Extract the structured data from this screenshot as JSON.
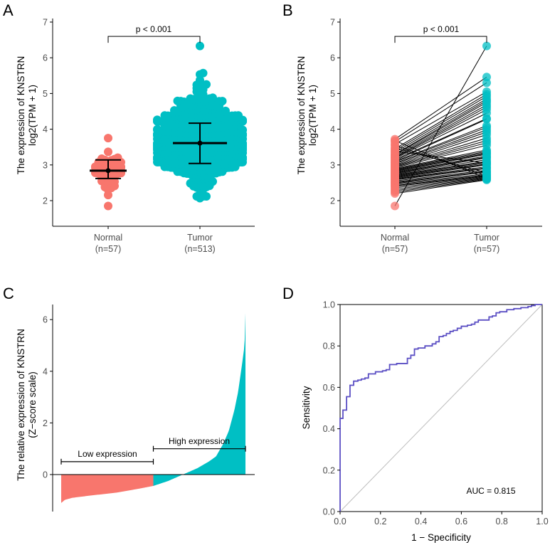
{
  "colors": {
    "normal": "#F8766D",
    "tumor": "#00BFC4",
    "roc_curve": "#5B4FC4",
    "reference_line": "#BEBEBE",
    "axis": "#000000",
    "tick_text": "#4D4D4D"
  },
  "chart_data": [
    {
      "id": "A",
      "panel_label": "A",
      "type": "scatter",
      "subtype": "beeswarm with mean ± SD",
      "ylabel_line1": "The expression of KNSTRN",
      "ylabel_line2": "log2(TPM + 1)",
      "ylim": [
        1.3,
        7
      ],
      "yticks": [
        2,
        3,
        4,
        5,
        6,
        7
      ],
      "categories": [
        {
          "name": "Normal",
          "n_label": "(n=57)",
          "n": 57,
          "mean": 2.84,
          "sd_low": 2.62,
          "sd_high": 3.14,
          "min": 1.85,
          "max": 3.75
        },
        {
          "name": "Tumor",
          "n_label": "(n=513)",
          "n": 513,
          "mean": 3.61,
          "sd_low": 3.04,
          "sd_high": 4.17,
          "min": 2.07,
          "max": 6.33
        }
      ],
      "significance": {
        "label": "p < 0.001",
        "y": 6.6
      }
    },
    {
      "id": "B",
      "panel_label": "B",
      "type": "line",
      "subtype": "paired points",
      "ylabel_line1": "The expression of KNSTRN",
      "ylabel_line2": "log2(TPM + 1)",
      "ylim": [
        1.3,
        7
      ],
      "yticks": [
        2,
        3,
        4,
        5,
        6,
        7
      ],
      "categories": [
        {
          "name": "Normal",
          "n_label": "(n=57)"
        },
        {
          "name": "Tumor",
          "n_label": "(n=57)"
        }
      ],
      "significance": {
        "label": "p < 0.001",
        "y": 6.6
      },
      "pairs": [
        [
          1.85,
          6.33
        ],
        [
          3.72,
          5.46
        ],
        [
          3.65,
          5.3
        ],
        [
          3.58,
          5.05
        ],
        [
          3.45,
          4.98
        ],
        [
          3.4,
          4.92
        ],
        [
          3.35,
          4.85
        ],
        [
          3.3,
          4.8
        ],
        [
          3.28,
          4.75
        ],
        [
          3.25,
          4.68
        ],
        [
          3.22,
          4.62
        ],
        [
          3.2,
          4.55
        ],
        [
          3.18,
          4.45
        ],
        [
          3.15,
          4.3
        ],
        [
          3.12,
          4.28
        ],
        [
          3.1,
          4.1
        ],
        [
          3.08,
          4.05
        ],
        [
          3.05,
          3.98
        ],
        [
          3.03,
          3.92
        ],
        [
          3.0,
          3.85
        ],
        [
          2.98,
          3.75
        ],
        [
          2.96,
          3.68
        ],
        [
          2.94,
          3.62
        ],
        [
          2.92,
          3.55
        ],
        [
          2.9,
          3.42
        ],
        [
          2.88,
          3.38
        ],
        [
          2.86,
          3.35
        ],
        [
          2.84,
          3.32
        ],
        [
          2.82,
          3.3
        ],
        [
          2.8,
          3.25
        ],
        [
          2.78,
          3.22
        ],
        [
          2.76,
          3.2
        ],
        [
          2.74,
          3.15
        ],
        [
          2.72,
          3.1
        ],
        [
          2.7,
          3.08
        ],
        [
          2.68,
          3.05
        ],
        [
          2.66,
          3.02
        ],
        [
          2.64,
          3.0
        ],
        [
          2.62,
          2.95
        ],
        [
          2.6,
          2.92
        ],
        [
          2.58,
          2.9
        ],
        [
          2.55,
          2.85
        ],
        [
          2.52,
          2.82
        ],
        [
          2.5,
          2.8
        ],
        [
          2.48,
          2.75
        ],
        [
          2.45,
          2.72
        ],
        [
          2.42,
          2.7
        ],
        [
          2.4,
          2.68
        ],
        [
          2.36,
          2.66
        ],
        [
          2.32,
          2.64
        ],
        [
          2.28,
          2.62
        ],
        [
          2.24,
          2.6
        ],
        [
          2.2,
          2.58
        ],
        [
          3.68,
          2.62
        ],
        [
          3.55,
          2.7
        ],
        [
          3.48,
          2.78
        ],
        [
          3.38,
          3.05
        ]
      ]
    },
    {
      "id": "C",
      "panel_label": "C",
      "type": "area",
      "subtype": "sorted z-score waterfall",
      "ylabel_line1": "The relative expression of KNSTRN",
      "ylabel_line2": "(Z−score scale)",
      "ylim": [
        -1.45,
        6.6
      ],
      "yticks": [
        0,
        2,
        4,
        6
      ],
      "n_samples": 513,
      "low_group_fraction": 0.5,
      "min": -1.1,
      "max": 6.25,
      "profile": [
        [
          0.0,
          -1.1
        ],
        [
          0.02,
          -0.98
        ],
        [
          0.06,
          -0.9
        ],
        [
          0.15,
          -0.82
        ],
        [
          0.3,
          -0.7
        ],
        [
          0.42,
          -0.55
        ],
        [
          0.5,
          -0.44
        ],
        [
          0.58,
          -0.25
        ],
        [
          0.66,
          0.0
        ],
        [
          0.74,
          0.25
        ],
        [
          0.8,
          0.5
        ],
        [
          0.84,
          0.7
        ],
        [
          0.88,
          1.2
        ],
        [
          0.91,
          1.7
        ],
        [
          0.94,
          2.5
        ],
        [
          0.96,
          3.2
        ],
        [
          0.98,
          4.2
        ],
        [
          0.995,
          5.0
        ],
        [
          1.0,
          6.25
        ]
      ],
      "annotations": [
        {
          "label": "Low expression",
          "x_from": 0.0,
          "x_to": 0.5,
          "y": 0.5
        },
        {
          "label": "High expression",
          "x_from": 0.5,
          "x_to": 1.0,
          "y": 1.0
        }
      ]
    },
    {
      "id": "D",
      "panel_label": "D",
      "type": "line",
      "subtype": "ROC curve",
      "xlabel": "1 − Specificity",
      "ylabel": "Sensitivity",
      "xlim": [
        0,
        1
      ],
      "ylim": [
        0,
        1
      ],
      "xticks": [
        "0.0",
        "0.2",
        "0.4",
        "0.6",
        "0.8",
        "1.0"
      ],
      "yticks": [
        "0.0",
        "0.2",
        "0.4",
        "0.6",
        "0.8",
        "1.0"
      ],
      "auc_label": "AUC = 0.815",
      "curve": [
        [
          0.0,
          0.0
        ],
        [
          0.0,
          0.45
        ],
        [
          0.014,
          0.45
        ],
        [
          0.014,
          0.49
        ],
        [
          0.032,
          0.49
        ],
        [
          0.032,
          0.555
        ],
        [
          0.049,
          0.555
        ],
        [
          0.049,
          0.61
        ],
        [
          0.067,
          0.61
        ],
        [
          0.067,
          0.63
        ],
        [
          0.088,
          0.63
        ],
        [
          0.088,
          0.635
        ],
        [
          0.105,
          0.635
        ],
        [
          0.105,
          0.64
        ],
        [
          0.123,
          0.64
        ],
        [
          0.123,
          0.645
        ],
        [
          0.14,
          0.645
        ],
        [
          0.14,
          0.665
        ],
        [
          0.175,
          0.665
        ],
        [
          0.175,
          0.675
        ],
        [
          0.21,
          0.675
        ],
        [
          0.21,
          0.68
        ],
        [
          0.228,
          0.68
        ],
        [
          0.228,
          0.685
        ],
        [
          0.245,
          0.685
        ],
        [
          0.245,
          0.71
        ],
        [
          0.28,
          0.71
        ],
        [
          0.28,
          0.715
        ],
        [
          0.333,
          0.715
        ],
        [
          0.333,
          0.74
        ],
        [
          0.35,
          0.74
        ],
        [
          0.35,
          0.755
        ],
        [
          0.368,
          0.755
        ],
        [
          0.368,
          0.785
        ],
        [
          0.386,
          0.785
        ],
        [
          0.386,
          0.79
        ],
        [
          0.42,
          0.79
        ],
        [
          0.42,
          0.8
        ],
        [
          0.456,
          0.8
        ],
        [
          0.456,
          0.81
        ],
        [
          0.474,
          0.81
        ],
        [
          0.474,
          0.82
        ],
        [
          0.49,
          0.82
        ],
        [
          0.49,
          0.845
        ],
        [
          0.51,
          0.845
        ],
        [
          0.51,
          0.85
        ],
        [
          0.526,
          0.85
        ],
        [
          0.526,
          0.86
        ],
        [
          0.544,
          0.86
        ],
        [
          0.544,
          0.87
        ],
        [
          0.56,
          0.87
        ],
        [
          0.56,
          0.875
        ],
        [
          0.58,
          0.875
        ],
        [
          0.58,
          0.885
        ],
        [
          0.6,
          0.885
        ],
        [
          0.6,
          0.895
        ],
        [
          0.63,
          0.895
        ],
        [
          0.63,
          0.9
        ],
        [
          0.65,
          0.9
        ],
        [
          0.65,
          0.905
        ],
        [
          0.667,
          0.905
        ],
        [
          0.667,
          0.915
        ],
        [
          0.684,
          0.915
        ],
        [
          0.684,
          0.925
        ],
        [
          0.737,
          0.925
        ],
        [
          0.737,
          0.94
        ],
        [
          0.754,
          0.94
        ],
        [
          0.754,
          0.945
        ],
        [
          0.772,
          0.945
        ],
        [
          0.772,
          0.96
        ],
        [
          0.79,
          0.96
        ],
        [
          0.79,
          0.965
        ],
        [
          0.825,
          0.965
        ],
        [
          0.825,
          0.975
        ],
        [
          0.86,
          0.975
        ],
        [
          0.86,
          0.98
        ],
        [
          0.895,
          0.98
        ],
        [
          0.895,
          0.985
        ],
        [
          0.93,
          0.985
        ],
        [
          0.93,
          0.99
        ],
        [
          0.947,
          0.99
        ],
        [
          0.947,
          0.995
        ],
        [
          0.965,
          0.995
        ],
        [
          0.965,
          1.0
        ],
        [
          1.0,
          1.0
        ]
      ]
    }
  ]
}
